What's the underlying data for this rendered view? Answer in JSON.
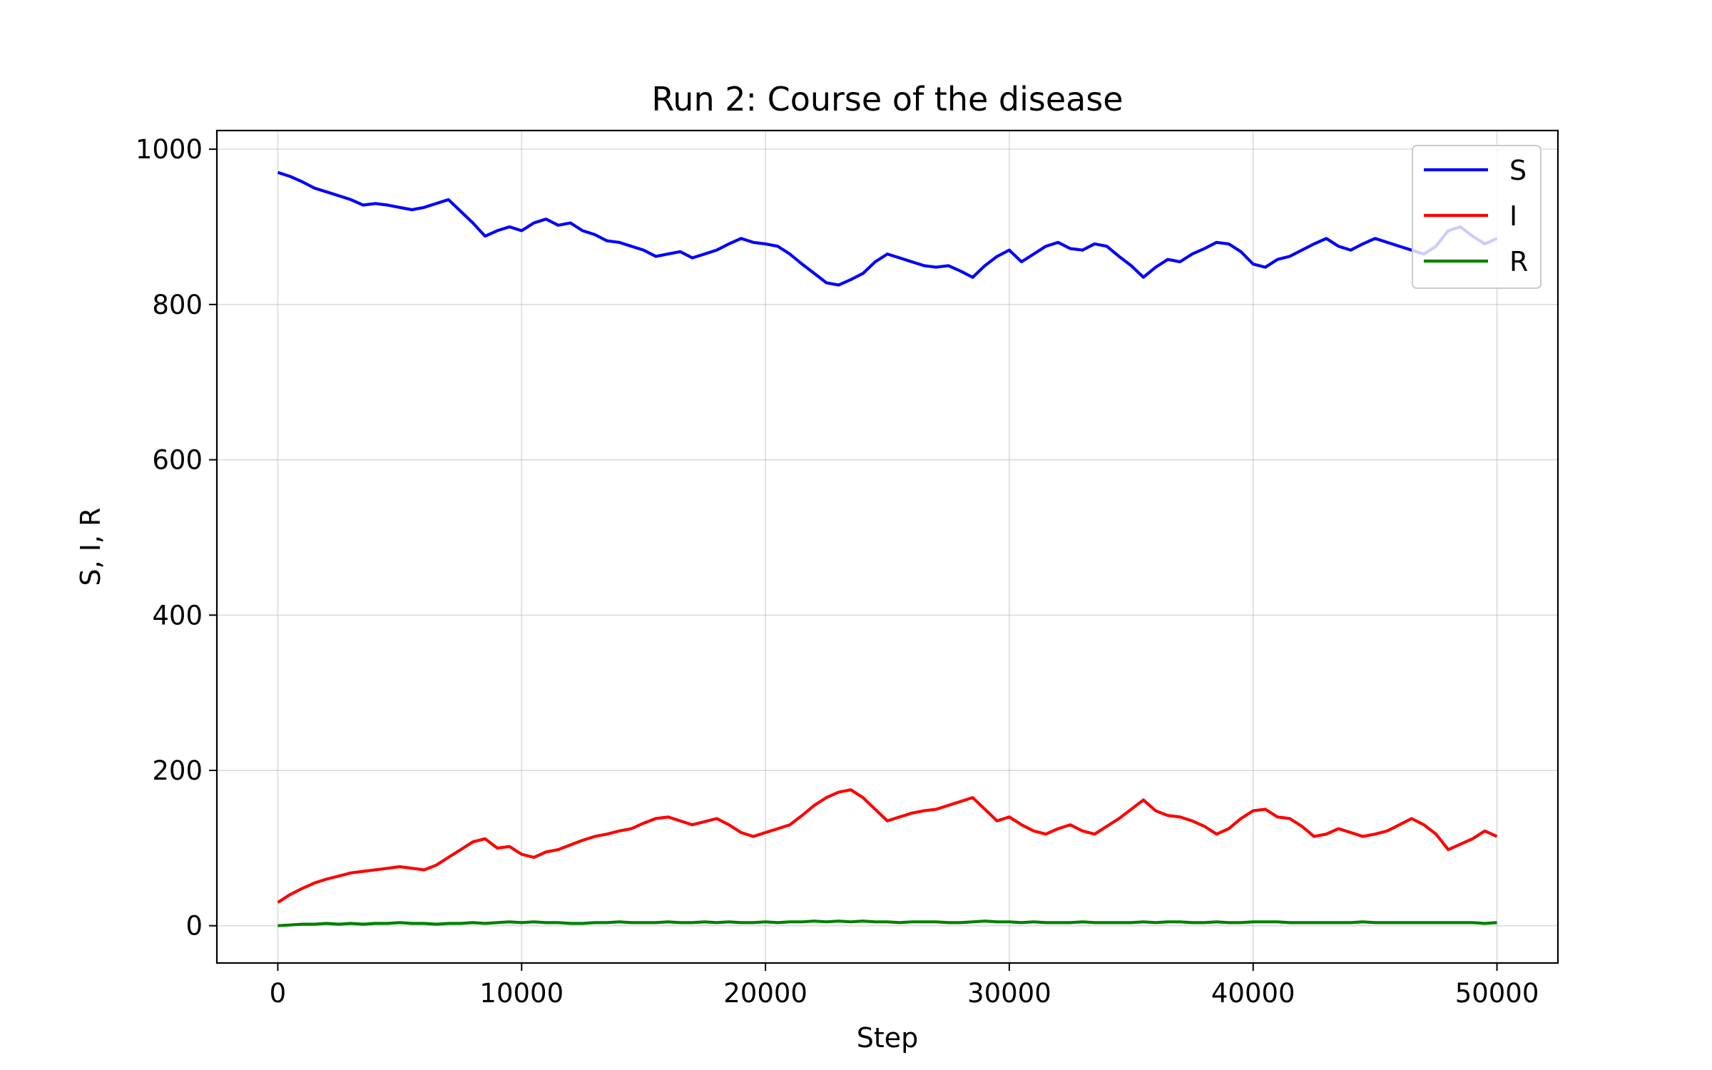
{
  "chart_data": {
    "type": "line",
    "title": "Run 2: Course of the disease",
    "xlabel": "Step",
    "ylabel": "S, I, R",
    "xlim": [
      -2500,
      52500
    ],
    "ylim": [
      -48,
      1024
    ],
    "xticks": [
      0,
      10000,
      20000,
      30000,
      40000,
      50000
    ],
    "yticks": [
      0,
      200,
      400,
      600,
      800,
      1000
    ],
    "grid": true,
    "legend_position": "top-right",
    "x": [
      0,
      500,
      1000,
      1500,
      2000,
      2500,
      3000,
      3500,
      4000,
      4500,
      5000,
      5500,
      6000,
      6500,
      7000,
      7500,
      8000,
      8500,
      9000,
      9500,
      10000,
      10500,
      11000,
      11500,
      12000,
      12500,
      13000,
      13500,
      14000,
      14500,
      15000,
      15500,
      16000,
      16500,
      17000,
      17500,
      18000,
      18500,
      19000,
      19500,
      20000,
      20500,
      21000,
      21500,
      22000,
      22500,
      23000,
      23500,
      24000,
      24500,
      25000,
      25500,
      26000,
      26500,
      27000,
      27500,
      28000,
      28500,
      29000,
      29500,
      30000,
      30500,
      31000,
      31500,
      32000,
      32500,
      33000,
      33500,
      34000,
      34500,
      35000,
      35500,
      36000,
      36500,
      37000,
      37500,
      38000,
      38500,
      39000,
      39500,
      40000,
      40500,
      41000,
      41500,
      42000,
      42500,
      43000,
      43500,
      44000,
      44500,
      45000,
      45500,
      46000,
      46500,
      47000,
      47500,
      48000,
      48500,
      49000,
      49500,
      50000
    ],
    "series": [
      {
        "name": "S",
        "color": "#0000ff",
        "values": [
          970,
          965,
          958,
          950,
          945,
          940,
          935,
          928,
          930,
          928,
          925,
          922,
          925,
          930,
          935,
          920,
          905,
          888,
          895,
          900,
          895,
          905,
          910,
          902,
          905,
          895,
          890,
          882,
          880,
          875,
          870,
          862,
          865,
          868,
          860,
          865,
          870,
          878,
          885,
          880,
          878,
          875,
          865,
          852,
          840,
          828,
          825,
          832,
          840,
          855,
          865,
          860,
          855,
          850,
          848,
          850,
          843,
          835,
          850,
          862,
          870,
          855,
          865,
          875,
          880,
          872,
          870,
          878,
          875,
          862,
          850,
          835,
          848,
          858,
          855,
          865,
          872,
          880,
          878,
          868,
          852,
          848,
          858,
          862,
          870,
          878,
          885,
          875,
          870,
          878,
          885,
          880,
          875,
          870,
          865,
          875,
          895,
          900,
          888,
          878,
          885
        ]
      },
      {
        "name": "I",
        "color": "#ff0000",
        "values": [
          30,
          40,
          48,
          55,
          60,
          64,
          68,
          70,
          72,
          74,
          76,
          74,
          72,
          78,
          88,
          98,
          108,
          112,
          100,
          102,
          92,
          88,
          95,
          98,
          104,
          110,
          115,
          118,
          122,
          125,
          132,
          138,
          140,
          135,
          130,
          134,
          138,
          130,
          120,
          115,
          120,
          125,
          130,
          142,
          155,
          165,
          172,
          175,
          165,
          150,
          135,
          140,
          145,
          148,
          150,
          155,
          160,
          165,
          150,
          135,
          140,
          130,
          122,
          118,
          125,
          130,
          122,
          118,
          128,
          138,
          150,
          162,
          148,
          142,
          140,
          135,
          128,
          118,
          125,
          138,
          148,
          150,
          140,
          138,
          128,
          115,
          118,
          125,
          120,
          115,
          118,
          122,
          130,
          138,
          130,
          118,
          98,
          105,
          112,
          122,
          115
        ]
      },
      {
        "name": "R",
        "color": "#008000",
        "values": [
          0,
          1,
          2,
          2,
          3,
          2,
          3,
          2,
          3,
          3,
          4,
          3,
          3,
          2,
          3,
          3,
          4,
          3,
          4,
          5,
          4,
          5,
          4,
          4,
          3,
          3,
          4,
          4,
          5,
          4,
          4,
          4,
          5,
          4,
          4,
          5,
          4,
          5,
          4,
          4,
          5,
          4,
          5,
          5,
          6,
          5,
          6,
          5,
          6,
          5,
          5,
          4,
          5,
          5,
          5,
          4,
          4,
          5,
          6,
          5,
          5,
          4,
          5,
          4,
          4,
          4,
          5,
          4,
          4,
          4,
          4,
          5,
          4,
          5,
          5,
          4,
          4,
          5,
          4,
          4,
          5,
          5,
          5,
          4,
          4,
          4,
          4,
          4,
          4,
          5,
          4,
          4,
          4,
          4,
          4,
          4,
          4,
          4,
          4,
          3,
          4
        ]
      }
    ]
  }
}
